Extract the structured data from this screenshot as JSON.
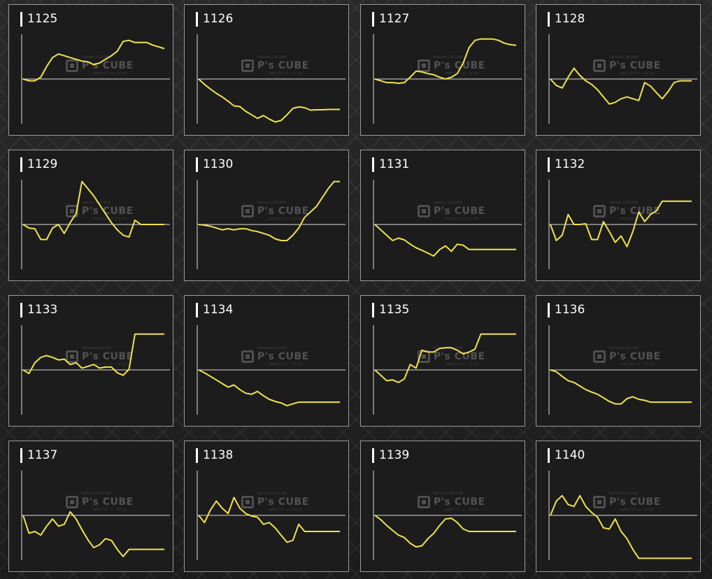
{
  "watermark": {
    "brand": "P's CUBE",
    "line_top": "Publisher E Stil 2018",
    "line_bottom": "sobro パチンコ・パチスロ"
  },
  "colors": {
    "series": "#f2e34a",
    "axis": "#dddddd",
    "panel_bg": "#1c1c1c"
  },
  "chart_data": [
    {
      "type": "line",
      "title": "1125",
      "ylim": [
        -1.25,
        1.25
      ],
      "grid": false,
      "baseline": 0,
      "x": [
        0,
        1,
        2,
        3,
        4,
        5,
        6,
        7,
        8,
        9,
        10,
        11,
        12,
        13,
        14,
        15,
        16,
        17,
        18,
        19,
        20,
        21,
        22,
        23,
        24
      ],
      "values": [
        0,
        -0.05,
        -0.05,
        0.05,
        0.35,
        0.6,
        0.7,
        0.65,
        0.6,
        0.55,
        0.5,
        0.48,
        0.4,
        0.45,
        0.55,
        0.65,
        0.78,
        1.05,
        1.08,
        1.02,
        1.02,
        1.02,
        0.95,
        0.9,
        0.85
      ]
    },
    {
      "type": "line",
      "title": "1126",
      "ylim": [
        -1.25,
        1.25
      ],
      "grid": false,
      "baseline": 0,
      "x": [
        0,
        1,
        2,
        3,
        4,
        5,
        6,
        7,
        8,
        9,
        10,
        11,
        12,
        13,
        14,
        15,
        16,
        17,
        18,
        19,
        20,
        21,
        22,
        23,
        24
      ],
      "values": [
        0,
        -0.15,
        -0.28,
        -0.4,
        -0.5,
        -0.62,
        -0.75,
        -0.77,
        -0.9,
        -1.0,
        -1.1,
        -1.02,
        -1.12,
        -1.2,
        -1.16,
        -1.0,
        -0.82,
        -0.78,
        -0.8,
        -0.87,
        -0.86,
        -0.86,
        -0.85,
        -0.85,
        -0.85
      ]
    },
    {
      "type": "line",
      "title": "1127",
      "ylim": [
        -1.25,
        1.25
      ],
      "grid": false,
      "baseline": 0,
      "x": [
        0,
        1,
        2,
        3,
        4,
        5,
        6,
        7,
        8,
        9,
        10,
        11,
        12,
        13,
        14,
        15,
        16,
        17,
        18,
        19,
        20,
        21,
        22,
        23,
        24
      ],
      "values": [
        0,
        -0.05,
        -0.1,
        -0.1,
        -0.12,
        -0.1,
        0.05,
        0.22,
        0.2,
        0.15,
        0.12,
        0.05,
        0,
        0.05,
        0.15,
        0.45,
        0.88,
        1.08,
        1.12,
        1.12,
        1.12,
        1.08,
        1.0,
        0.96,
        0.94
      ]
    },
    {
      "type": "line",
      "title": "1128",
      "ylim": [
        -1.25,
        1.25
      ],
      "grid": false,
      "baseline": 0,
      "x": [
        0,
        1,
        2,
        3,
        4,
        5,
        6,
        7,
        8,
        9,
        10,
        11,
        12,
        13,
        14,
        15,
        16,
        17,
        18,
        19,
        20,
        21,
        22,
        23,
        24
      ],
      "values": [
        0,
        -0.18,
        -0.25,
        0.05,
        0.3,
        0.1,
        -0.05,
        -0.15,
        -0.3,
        -0.5,
        -0.7,
        -0.65,
        -0.55,
        -0.5,
        -0.55,
        -0.6,
        -0.1,
        -0.2,
        -0.38,
        -0.55,
        -0.35,
        -0.1,
        -0.05,
        -0.05,
        -0.05
      ]
    },
    {
      "type": "line",
      "title": "1129",
      "ylim": [
        -1.25,
        1.25
      ],
      "grid": false,
      "baseline": 0,
      "x": [
        0,
        1,
        2,
        3,
        4,
        5,
        6,
        7,
        8,
        9,
        10,
        11,
        12,
        13,
        14,
        15,
        16,
        17,
        18,
        19,
        20,
        21,
        22,
        23,
        24
      ],
      "values": [
        0,
        -0.1,
        -0.12,
        -0.42,
        -0.42,
        -0.1,
        0,
        -0.25,
        0.05,
        0.3,
        1.2,
        1.0,
        0.8,
        0.55,
        0.3,
        0.05,
        -0.15,
        -0.3,
        -0.35,
        0.12,
        0,
        0,
        0,
        0,
        0
      ]
    },
    {
      "type": "line",
      "title": "1130",
      "ylim": [
        -1.25,
        1.25
      ],
      "grid": false,
      "baseline": 0,
      "x": [
        0,
        1,
        2,
        3,
        4,
        5,
        6,
        7,
        8,
        9,
        10,
        11,
        12,
        13,
        14,
        15,
        16,
        17,
        18,
        19,
        20,
        21,
        22,
        23,
        24
      ],
      "values": [
        0,
        -0.02,
        -0.05,
        -0.1,
        -0.15,
        -0.12,
        -0.15,
        -0.12,
        -0.12,
        -0.17,
        -0.2,
        -0.25,
        -0.3,
        -0.4,
        -0.45,
        -0.45,
        -0.3,
        -0.1,
        0.2,
        0.35,
        0.5,
        0.75,
        1.0,
        1.2,
        1.2
      ]
    },
    {
      "type": "line",
      "title": "1131",
      "ylim": [
        -1.25,
        1.25
      ],
      "grid": false,
      "baseline": 0,
      "x": [
        0,
        1,
        2,
        3,
        4,
        5,
        6,
        7,
        8,
        9,
        10,
        11,
        12,
        13,
        14,
        15,
        16,
        17,
        18,
        19,
        20,
        21,
        22,
        23,
        24
      ],
      "values": [
        0,
        -0.15,
        -0.3,
        -0.45,
        -0.38,
        -0.43,
        -0.55,
        -0.65,
        -0.72,
        -0.8,
        -0.88,
        -0.7,
        -0.6,
        -0.75,
        -0.55,
        -0.58,
        -0.7,
        -0.7,
        -0.7,
        -0.7,
        -0.7,
        -0.7,
        -0.7,
        -0.7,
        -0.7
      ]
    },
    {
      "type": "line",
      "title": "1132",
      "ylim": [
        -1.25,
        1.25
      ],
      "grid": false,
      "baseline": 0,
      "x": [
        0,
        1,
        2,
        3,
        4,
        5,
        6,
        7,
        8,
        9,
        10,
        11,
        12,
        13,
        14,
        15,
        16,
        17,
        18,
        19,
        20,
        21,
        22,
        23,
        24
      ],
      "values": [
        0,
        -0.45,
        -0.3,
        0.28,
        0,
        0,
        0.02,
        -0.42,
        -0.42,
        0.08,
        -0.2,
        -0.5,
        -0.32,
        -0.62,
        -0.2,
        0.35,
        0.08,
        0.28,
        0.38,
        0.65,
        0.65,
        0.65,
        0.65,
        0.65,
        0.65
      ]
    },
    {
      "type": "line",
      "title": "1133",
      "ylim": [
        -1.25,
        1.25
      ],
      "grid": false,
      "baseline": 0,
      "x": [
        0,
        1,
        2,
        3,
        4,
        5,
        6,
        7,
        8,
        9,
        10,
        11,
        12,
        13,
        14,
        15,
        16,
        17,
        18,
        19,
        20,
        21,
        22,
        23,
        24
      ],
      "values": [
        0,
        -0.1,
        0.2,
        0.35,
        0.4,
        0.35,
        0.28,
        0.3,
        0.15,
        0.2,
        0.05,
        0.1,
        0.15,
        0.05,
        0.08,
        0.08,
        -0.08,
        -0.15,
        0.02,
        1.0,
        1.0,
        1.0,
        1.0,
        1.0,
        1.0
      ]
    },
    {
      "type": "line",
      "title": "1134",
      "ylim": [
        -1.25,
        1.25
      ],
      "grid": false,
      "baseline": 0,
      "x": [
        0,
        1,
        2,
        3,
        4,
        5,
        6,
        7,
        8,
        9,
        10,
        11,
        12,
        13,
        14,
        15,
        16,
        17,
        18,
        19,
        20,
        21,
        22,
        23,
        24
      ],
      "values": [
        0,
        -0.08,
        -0.18,
        -0.28,
        -0.38,
        -0.48,
        -0.42,
        -0.55,
        -0.65,
        -0.68,
        -0.6,
        -0.72,
        -0.82,
        -0.88,
        -0.92,
        -1.0,
        -0.95,
        -0.9,
        -0.9,
        -0.9,
        -0.9,
        -0.9,
        -0.9,
        -0.9,
        -0.9
      ]
    },
    {
      "type": "line",
      "title": "1135",
      "ylim": [
        -1.25,
        1.25
      ],
      "grid": false,
      "baseline": 0,
      "x": [
        0,
        1,
        2,
        3,
        4,
        5,
        6,
        7,
        8,
        9,
        10,
        11,
        12,
        13,
        14,
        15,
        16,
        17,
        18,
        19,
        20,
        21,
        22,
        23,
        24
      ],
      "values": [
        0,
        -0.15,
        -0.3,
        -0.28,
        -0.35,
        -0.25,
        0.15,
        0.05,
        0.55,
        0.5,
        0.5,
        0.6,
        0.62,
        0.62,
        0.55,
        0.45,
        0.5,
        0.58,
        1.0,
        1.0,
        1.0,
        1.0,
        1.0,
        1.0,
        1.0
      ]
    },
    {
      "type": "line",
      "title": "1136",
      "ylim": [
        -1.25,
        1.25
      ],
      "grid": false,
      "baseline": 0,
      "x": [
        0,
        1,
        2,
        3,
        4,
        5,
        6,
        7,
        8,
        9,
        10,
        11,
        12,
        13,
        14,
        15,
        16,
        17,
        18,
        19,
        20,
        21,
        22,
        23,
        24
      ],
      "values": [
        0,
        -0.05,
        -0.18,
        -0.3,
        -0.35,
        -0.45,
        -0.55,
        -0.62,
        -0.68,
        -0.78,
        -0.88,
        -0.95,
        -0.95,
        -0.8,
        -0.75,
        -0.82,
        -0.85,
        -0.9,
        -0.9,
        -0.9,
        -0.9,
        -0.9,
        -0.9,
        -0.9,
        -0.9
      ]
    },
    {
      "type": "line",
      "title": "1137",
      "ylim": [
        -1.25,
        1.25
      ],
      "grid": false,
      "baseline": 0,
      "x": [
        0,
        1,
        2,
        3,
        4,
        5,
        6,
        7,
        8,
        9,
        10,
        11,
        12,
        13,
        14,
        15,
        16,
        17,
        18,
        19,
        20,
        21,
        22,
        23,
        24
      ],
      "values": [
        0,
        -0.5,
        -0.45,
        -0.55,
        -0.3,
        -0.1,
        -0.3,
        -0.25,
        0.1,
        -0.1,
        -0.4,
        -0.68,
        -0.9,
        -0.82,
        -0.65,
        -0.7,
        -0.95,
        -1.15,
        -0.95,
        -0.95,
        -0.95,
        -0.95,
        -0.95,
        -0.95,
        -0.95
      ]
    },
    {
      "type": "line",
      "title": "1138",
      "ylim": [
        -1.25,
        1.25
      ],
      "grid": false,
      "baseline": 0,
      "x": [
        0,
        1,
        2,
        3,
        4,
        5,
        6,
        7,
        8,
        9,
        10,
        11,
        12,
        13,
        14,
        15,
        16,
        17,
        18,
        19,
        20,
        21,
        22,
        23,
        24
      ],
      "values": [
        0,
        -0.2,
        0.15,
        0.4,
        0.2,
        0.05,
        0.5,
        0.2,
        0.05,
        -0.02,
        -0.05,
        -0.25,
        -0.2,
        -0.35,
        -0.55,
        -0.75,
        -0.7,
        -0.25,
        -0.45,
        -0.45,
        -0.45,
        -0.45,
        -0.45,
        -0.45,
        -0.45
      ]
    },
    {
      "type": "line",
      "title": "1139",
      "ylim": [
        -1.25,
        1.25
      ],
      "grid": false,
      "baseline": 0,
      "x": [
        0,
        1,
        2,
        3,
        4,
        5,
        6,
        7,
        8,
        9,
        10,
        11,
        12,
        13,
        14,
        15,
        16,
        17,
        18,
        19,
        20,
        21,
        22,
        23,
        24
      ],
      "values": [
        0,
        -0.12,
        -0.28,
        -0.42,
        -0.55,
        -0.62,
        -0.78,
        -0.88,
        -0.85,
        -0.65,
        -0.5,
        -0.28,
        -0.1,
        -0.08,
        -0.2,
        -0.38,
        -0.45,
        -0.45,
        -0.45,
        -0.45,
        -0.45,
        -0.45,
        -0.45,
        -0.45,
        -0.45
      ]
    },
    {
      "type": "line",
      "title": "1140",
      "ylim": [
        -1.25,
        1.25
      ],
      "grid": false,
      "baseline": 0,
      "x": [
        0,
        1,
        2,
        3,
        4,
        5,
        6,
        7,
        8,
        9,
        10,
        11,
        12,
        13,
        14,
        15,
        16,
        17,
        18,
        19,
        20,
        21,
        22,
        23,
        24
      ],
      "values": [
        0,
        0.4,
        0.55,
        0.3,
        0.25,
        0.55,
        0.25,
        0.08,
        -0.05,
        -0.35,
        -0.38,
        -0.1,
        -0.45,
        -0.65,
        -0.95,
        -1.2,
        -1.2,
        -1.2,
        -1.2,
        -1.2,
        -1.2,
        -1.2,
        -1.2,
        -1.2,
        -1.2
      ]
    }
  ]
}
